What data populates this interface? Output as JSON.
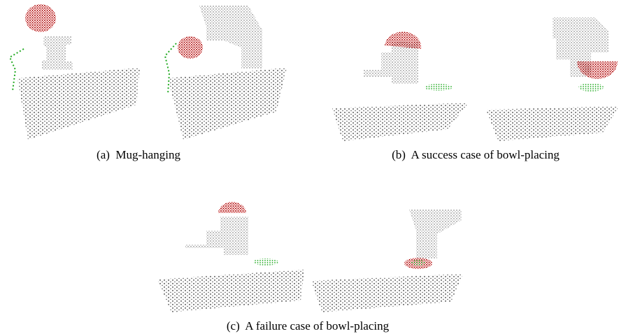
{
  "figure": {
    "subfigures": [
      {
        "caption": "(a)  Mug-hanging"
      },
      {
        "caption": "(b)  A success case of bowl-placing"
      },
      {
        "caption": "(c)  A failure case of bowl-placing"
      }
    ]
  }
}
